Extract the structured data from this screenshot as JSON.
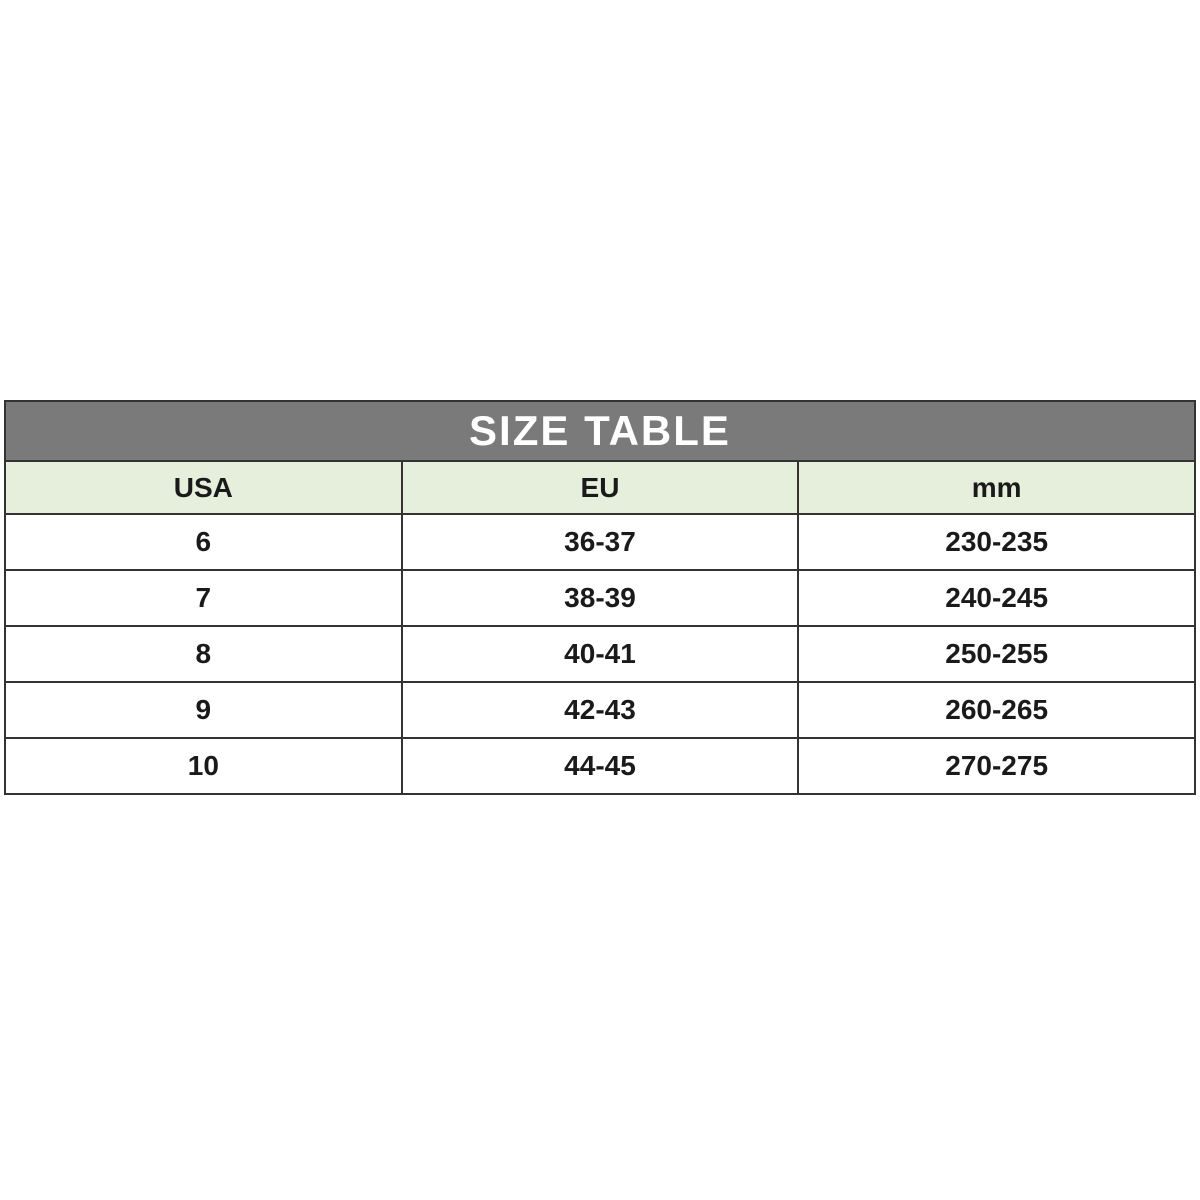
{
  "page": {
    "background": "#ffffff"
  },
  "table": {
    "title": "SIZE TABLE",
    "columns": [
      "USA",
      "EU",
      "mm"
    ],
    "rows": [
      [
        "6",
        "36-37",
        "230-235"
      ],
      [
        "7",
        "38-39",
        "240-245"
      ],
      [
        "8",
        "40-41",
        "250-255"
      ],
      [
        "9",
        "42-43",
        "260-265"
      ],
      [
        "10",
        "44-45",
        "270-275"
      ]
    ],
    "colors": {
      "title_bg": "#7a7a7a",
      "title_text": "#ffffff",
      "header_bg": "#e5efdc",
      "row_bg": "#ffffff",
      "border": "#333333",
      "cell_text": "#1a1a1a"
    }
  },
  "chart_data": {
    "type": "table",
    "title": "SIZE TABLE",
    "columns": [
      "USA",
      "EU",
      "mm"
    ],
    "rows": [
      [
        "6",
        "36-37",
        "230-235"
      ],
      [
        "7",
        "38-39",
        "240-245"
      ],
      [
        "8",
        "40-41",
        "250-255"
      ],
      [
        "9",
        "42-43",
        "260-265"
      ],
      [
        "10",
        "44-45",
        "270-275"
      ]
    ]
  }
}
